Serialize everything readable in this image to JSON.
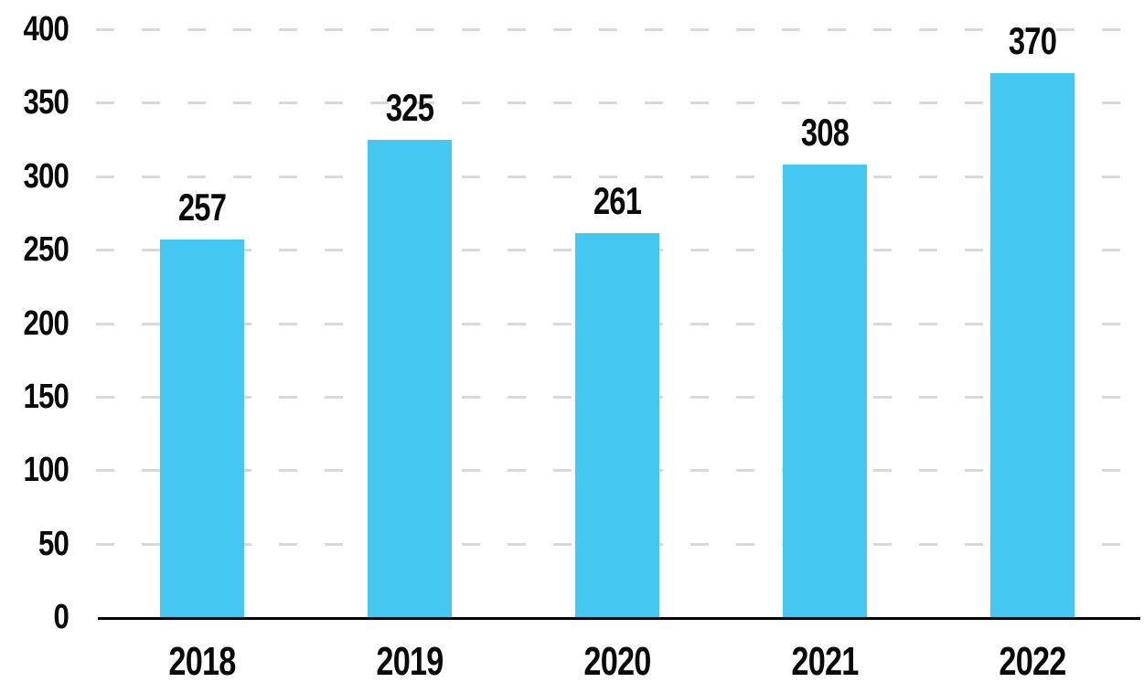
{
  "chart_data": {
    "type": "bar",
    "categories": [
      "2018",
      "2019",
      "2020",
      "2021",
      "2022"
    ],
    "values": [
      257,
      325,
      261,
      308,
      370
    ],
    "title": "",
    "xlabel": "",
    "ylabel": "",
    "ylim": [
      0,
      400
    ],
    "ytick_step": 50,
    "ytick_labels": [
      "0",
      "50",
      "100",
      "150",
      "200",
      "250",
      "300",
      "350",
      "400"
    ],
    "grid": "horizontal-dashed",
    "legend": "none",
    "colors": {
      "bar": "#44C8F2",
      "gridline": "#D9D9D9",
      "axis": "#000000",
      "text": "#0A0A0A"
    }
  }
}
